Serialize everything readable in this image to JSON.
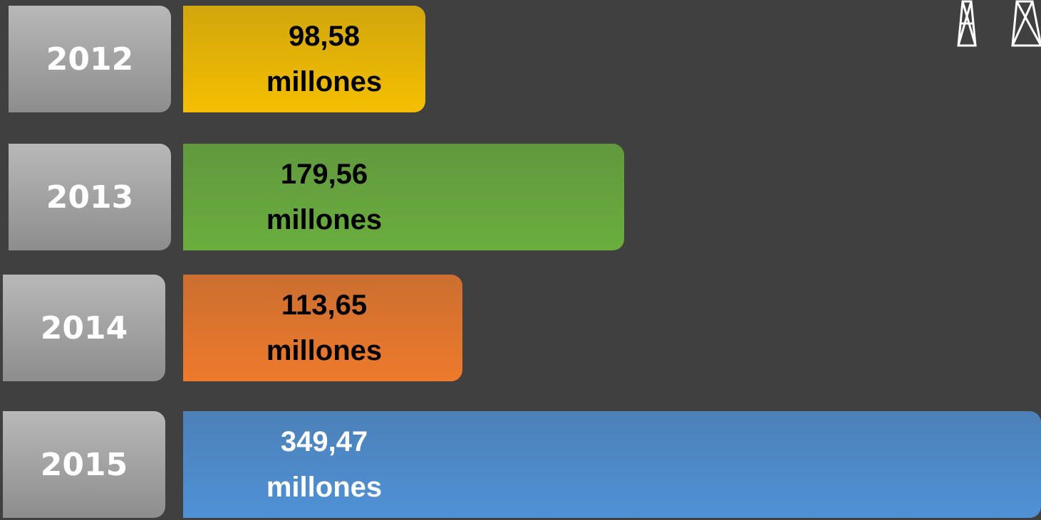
{
  "chart_data": {
    "type": "bar",
    "categories": [
      "2012",
      "2013",
      "2014",
      "2015"
    ],
    "values": [
      98.58,
      179.56,
      113.65,
      349.47
    ],
    "value_labels": [
      "98,58 millones",
      "179,56 millones",
      "113,65 millones",
      "349,47 millones"
    ],
    "colors": [
      "#f5bf00",
      "#6aae3e",
      "#ee7a2c",
      "#4f91d6"
    ],
    "label_colors": [
      "#000000",
      "#000000",
      "#000000",
      "#ffffff"
    ]
  }
}
